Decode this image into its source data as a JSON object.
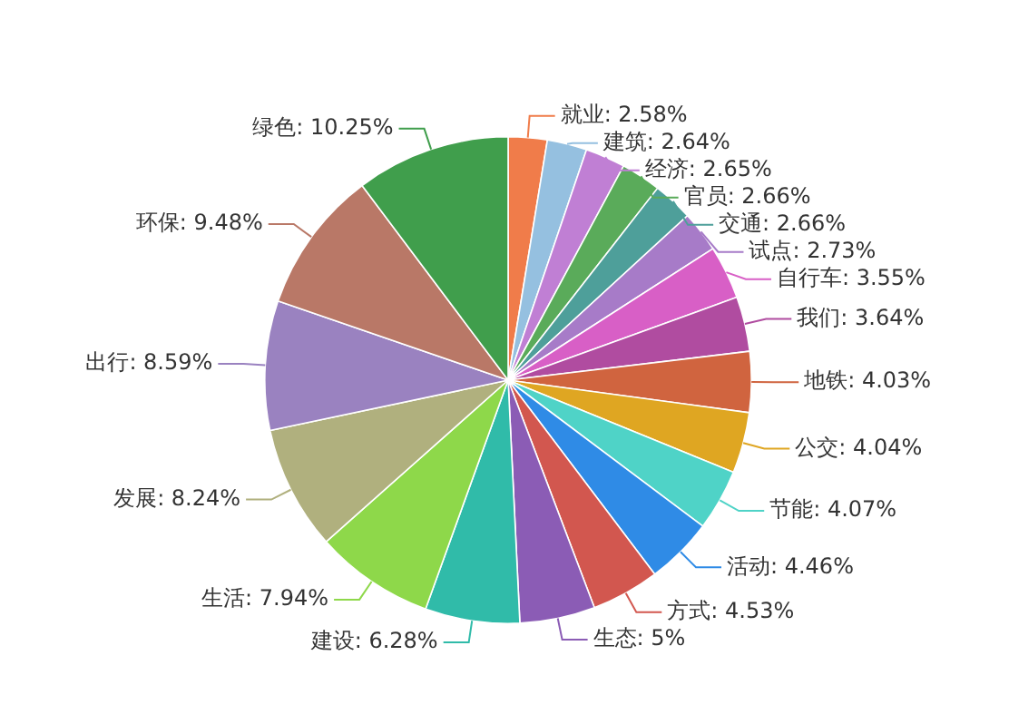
{
  "chart_data": {
    "type": "pie",
    "categories": [
      "就业",
      "建筑",
      "经济",
      "官员",
      "交通",
      "试点",
      "自行车",
      "我们",
      "地铁",
      "公交",
      "节能",
      "活动",
      "方式",
      "生态",
      "建设",
      "生活",
      "发展",
      "出行",
      "环保",
      "绿色"
    ],
    "values": [
      2.58,
      2.64,
      2.65,
      2.66,
      2.66,
      2.73,
      3.55,
      3.64,
      4.03,
      4.04,
      4.07,
      4.46,
      4.53,
      5,
      6.28,
      7.94,
      8.24,
      8.59,
      9.48,
      10.25
    ],
    "value_labels": [
      "2.58%",
      "2.64%",
      "2.65%",
      "2.66%",
      "2.66%",
      "2.73%",
      "3.55%",
      "3.64%",
      "4.03%",
      "4.04%",
      "4.07%",
      "4.46%",
      "4.53%",
      "5%",
      "6.28%",
      "7.94%",
      "8.24%",
      "8.59%",
      "9.48%",
      "10.25%"
    ],
    "colors": [
      "#f07c4a",
      "#95c0e0",
      "#c07fd4",
      "#5aab5a",
      "#4e9f9a",
      "#a77bc8",
      "#d85fc6",
      "#b04ca0",
      "#d0643f",
      "#dfa622",
      "#4fd3c7",
      "#2f8be6",
      "#d2574f",
      "#8b5cb5",
      "#30bba9",
      "#8ed84a",
      "#b0b07e",
      "#9a82c0",
      "#b97867",
      "#409e4c"
    ]
  }
}
